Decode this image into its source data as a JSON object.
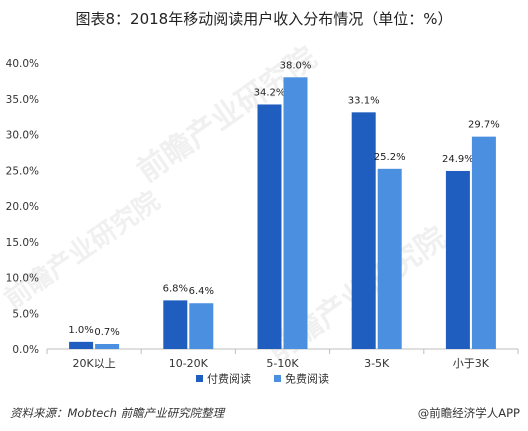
{
  "title": "图表8：2018年移动阅读用户收入分布情况（单位：%）",
  "footer": {
    "source": "资料来源：Mobtech  前瞻产业研究院整理",
    "brand": "@前瞻经济学人APP"
  },
  "watermark": "前瞻产业研究院",
  "colors": {
    "series1": "#1f5dbf",
    "series2": "#4a8fe0",
    "axis": "#bfbfbf",
    "tick_text": "#333333"
  },
  "chart_data": {
    "type": "bar",
    "categories": [
      "20K以上",
      "10-20K",
      "5-10K",
      "3-5K",
      "小于3K"
    ],
    "series": [
      {
        "name": "付费阅读",
        "values": [
          1.0,
          6.8,
          34.2,
          33.1,
          24.9
        ],
        "labels": [
          "1.0%",
          "6.8%",
          "34.2%",
          "33.1%",
          "24.9%"
        ]
      },
      {
        "name": "免费阅读",
        "values": [
          0.7,
          6.4,
          38.0,
          25.2,
          29.7
        ],
        "labels": [
          "0.7%",
          "6.4%",
          "38.0%",
          "25.2%",
          "29.7%"
        ]
      }
    ],
    "ylim": [
      0,
      40
    ],
    "yticks": [
      "0.0%",
      "5.0%",
      "10.0%",
      "15.0%",
      "20.0%",
      "25.0%",
      "30.0%",
      "35.0%",
      "40.0%"
    ],
    "grid": false,
    "legend_position": "bottom"
  }
}
